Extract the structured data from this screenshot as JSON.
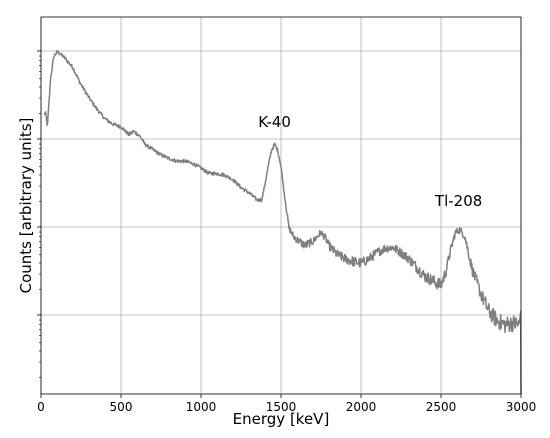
{
  "chart_data": {
    "type": "line",
    "title": "",
    "xlabel": "Energy [keV]",
    "ylabel": "Counts [arbitrary units]",
    "xlim": [
      0,
      3000
    ],
    "yscale": "log",
    "ylim_decades": [
      0,
      4
    ],
    "grid": true,
    "legend": "none",
    "xticks": [
      "0",
      "500",
      "1000",
      "1500",
      "2000",
      "2500",
      "3000"
    ],
    "series": [
      {
        "line_color": "#7f7f7f",
        "x": [
          20,
          30,
          40,
          60,
          80,
          100,
          120,
          150,
          200,
          250,
          300,
          350,
          400,
          450,
          500,
          550,
          580,
          620,
          650,
          700,
          750,
          800,
          850,
          900,
          950,
          1000,
          1050,
          1100,
          1150,
          1200,
          1250,
          1300,
          1350,
          1380,
          1400,
          1420,
          1440,
          1460,
          1480,
          1500,
          1520,
          1550,
          1580,
          1600,
          1650,
          1700,
          1750,
          1780,
          1800,
          1850,
          1900,
          1950,
          2000,
          2050,
          2100,
          2150,
          2200,
          2250,
          2300,
          2350,
          2400,
          2450,
          2500,
          2530,
          2560,
          2590,
          2620,
          2650,
          2680,
          2700,
          2750,
          2800,
          2850,
          2900,
          2950,
          2990,
          3000
        ],
        "y_log10": [
          3.3,
          3.3,
          3.15,
          3.7,
          3.95,
          4.0,
          3.98,
          3.93,
          3.82,
          3.63,
          3.48,
          3.35,
          3.24,
          3.18,
          3.15,
          3.06,
          3.1,
          3.04,
          2.95,
          2.89,
          2.83,
          2.79,
          2.76,
          2.76,
          2.73,
          2.68,
          2.62,
          2.62,
          2.6,
          2.55,
          2.46,
          2.4,
          2.32,
          2.32,
          2.5,
          2.7,
          2.88,
          2.95,
          2.88,
          2.7,
          2.4,
          2.0,
          1.9,
          1.87,
          1.8,
          1.85,
          1.95,
          1.88,
          1.8,
          1.7,
          1.65,
          1.62,
          1.6,
          1.65,
          1.72,
          1.77,
          1.78,
          1.72,
          1.65,
          1.55,
          1.45,
          1.4,
          1.35,
          1.5,
          1.75,
          1.95,
          1.98,
          1.9,
          1.65,
          1.5,
          1.25,
          1.05,
          0.95,
          0.9,
          0.92,
          0.9,
          0.2
        ]
      }
    ],
    "annotations": [
      {
        "text": "K-40",
        "x": 1460,
        "y_log10": 3.15
      },
      {
        "text": "Tl-208",
        "x": 2610,
        "y_log10": 2.25
      }
    ]
  }
}
